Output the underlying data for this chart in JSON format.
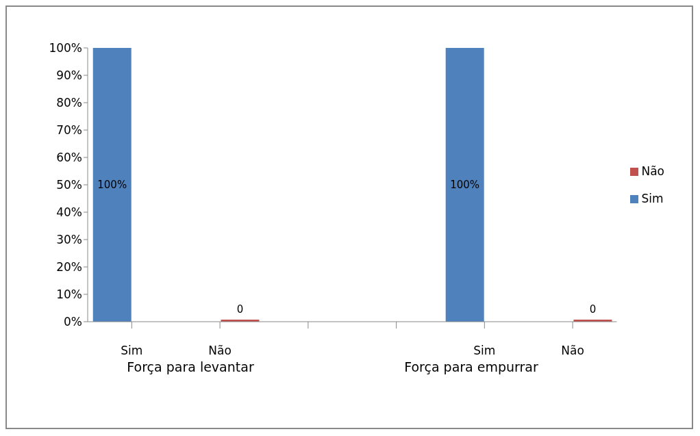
{
  "chart_data": {
    "type": "bar",
    "categories": [
      "Sim",
      "Não",
      null,
      null,
      "Sim",
      "Não"
    ],
    "series": [
      {
        "name": "Sim",
        "color": "#4f81bd",
        "values": [
          100,
          null,
          null,
          null,
          100,
          null
        ],
        "value_labels": [
          "100%",
          null,
          null,
          null,
          "100%",
          null
        ]
      },
      {
        "name": "Não",
        "color": "#c0504d",
        "values": [
          null,
          0,
          null,
          null,
          null,
          0
        ],
        "value_labels": [
          null,
          "0",
          null,
          null,
          null,
          "0"
        ]
      }
    ],
    "ylim": [
      0,
      100
    ],
    "yticks": [
      {
        "value": 0,
        "label": "0%"
      },
      {
        "value": 10,
        "label": "10%"
      },
      {
        "value": 20,
        "label": "20%"
      },
      {
        "value": 30,
        "label": "30%"
      },
      {
        "value": 40,
        "label": "40%"
      },
      {
        "value": 50,
        "label": "50%"
      },
      {
        "value": 60,
        "label": "60%"
      },
      {
        "value": 70,
        "label": "70%"
      },
      {
        "value": 80,
        "label": "80%"
      },
      {
        "value": 90,
        "label": "90%"
      },
      {
        "value": 100,
        "label": "100%"
      }
    ],
    "grid": false,
    "legend": "right",
    "annotations": [
      "Força para levantar",
      "Força para empurrar"
    ]
  }
}
